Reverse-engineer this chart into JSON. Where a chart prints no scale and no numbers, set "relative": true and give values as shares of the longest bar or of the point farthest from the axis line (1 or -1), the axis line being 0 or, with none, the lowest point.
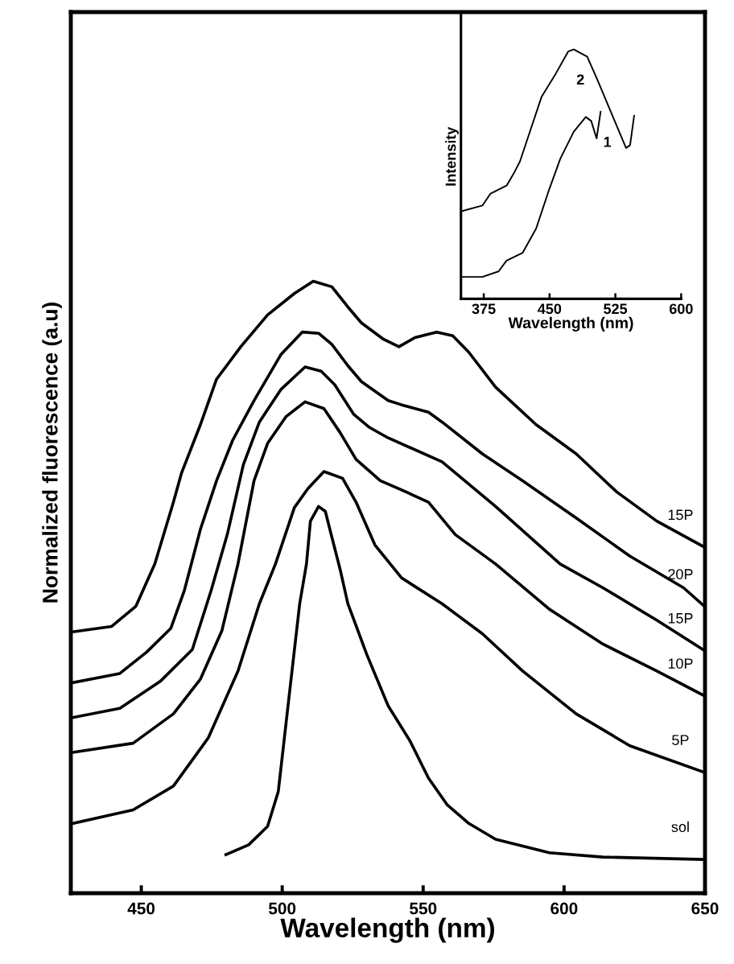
{
  "chart_data": [
    {
      "type": "line",
      "relative": true,
      "xlabel": "Wavelength (nm)",
      "ylabel": "Normalized fluorescence (a.u)",
      "xlim": [
        425,
        650
      ],
      "xticks": [
        450,
        500,
        550,
        600,
        650
      ],
      "tick_labels": "x",
      "grid": false,
      "legend": false,
      "marker": "none",
      "line_style": "solid",
      "series": [
        {
          "name": "15P",
          "color": "#000000",
          "x": [
            425.6,
            439.5,
            448.1,
            454.8,
            461.4,
            464.3,
            471,
            476.7,
            485.3,
            494.8,
            504.3,
            511,
            517.6,
            523.3,
            528.1,
            535.7,
            541.4,
            547.1,
            554.8,
            560.5,
            566.2,
            575.7,
            590,
            604.3,
            618.6,
            632.9,
            650
          ],
          "values": [
            0.427,
            0.436,
            0.469,
            0.538,
            0.639,
            0.687,
            0.766,
            0.84,
            0.893,
            0.945,
            0.98,
            1.0,
            0.991,
            0.958,
            0.932,
            0.906,
            0.893,
            0.908,
            0.917,
            0.911,
            0.884,
            0.827,
            0.766,
            0.718,
            0.656,
            0.608,
            0.565
          ]
        },
        {
          "name": "20P",
          "color": "#000000",
          "x": [
            425.7,
            442.4,
            451.9,
            460.5,
            465.3,
            471,
            476.7,
            482.4,
            490,
            499.5,
            507.1,
            512.9,
            517.6,
            523.3,
            528.1,
            537.6,
            542.4,
            551.9,
            556.7,
            571,
            585.3,
            604.3,
            623.3,
            642.4,
            650
          ],
          "values": [
            0.344,
            0.359,
            0.394,
            0.433,
            0.495,
            0.595,
            0.674,
            0.74,
            0.805,
            0.88,
            0.917,
            0.915,
            0.897,
            0.862,
            0.836,
            0.805,
            0.798,
            0.786,
            0.77,
            0.718,
            0.674,
            0.613,
            0.551,
            0.499,
            0.468
          ]
        },
        {
          "name": "15P",
          "color": "#000000",
          "x": [
            425.7,
            442.4,
            456.7,
            468.1,
            474.8,
            480.5,
            486.2,
            491.9,
            499.5,
            508.1,
            513.8,
            518.6,
            525.3,
            531,
            537.6,
            556.7,
            575.7,
            598.6,
            613.8,
            632.9,
            650
          ],
          "values": [
            0.287,
            0.302,
            0.346,
            0.398,
            0.495,
            0.586,
            0.7,
            0.77,
            0.823,
            0.86,
            0.853,
            0.831,
            0.783,
            0.761,
            0.744,
            0.705,
            0.632,
            0.538,
            0.499,
            0.446,
            0.396
          ]
        },
        {
          "name": "10P",
          "color": "#000000",
          "x": [
            425.7,
            447.1,
            461.4,
            471,
            478.6,
            484.3,
            490,
            494.8,
            501.4,
            508.1,
            514.8,
            520.5,
            526.2,
            534.8,
            541.4,
            551.9,
            561.4,
            575.7,
            594.8,
            613.8,
            632.9,
            650
          ],
          "values": [
            0.23,
            0.245,
            0.293,
            0.35,
            0.429,
            0.538,
            0.674,
            0.735,
            0.779,
            0.803,
            0.792,
            0.753,
            0.709,
            0.674,
            0.661,
            0.639,
            0.586,
            0.538,
            0.464,
            0.407,
            0.363,
            0.322
          ]
        },
        {
          "name": "5P",
          "color": "#000000",
          "x": [
            425.7,
            447.1,
            461.4,
            473.8,
            484.3,
            491.9,
            497.6,
            504.3,
            509.1,
            514.8,
            521.4,
            526.2,
            532.9,
            542.4,
            556.7,
            571,
            585.3,
            604.3,
            623.3,
            650
          ],
          "values": [
            0.114,
            0.136,
            0.175,
            0.254,
            0.363,
            0.473,
            0.538,
            0.63,
            0.661,
            0.689,
            0.678,
            0.639,
            0.569,
            0.515,
            0.473,
            0.424,
            0.363,
            0.293,
            0.241,
            0.197
          ]
        },
        {
          "name": "sol",
          "color": "#000000",
          "x": [
            480,
            488.1,
            494.8,
            498.6,
            502.4,
            506.2,
            508.6,
            510,
            512.9,
            515.3,
            517.1,
            520.5,
            523.3,
            530,
            537.6,
            545.3,
            551.9,
            558.6,
            566.2,
            575.7,
            594.8,
            613.8,
            650
          ],
          "values": [
            0.063,
            0.079,
            0.109,
            0.166,
            0.32,
            0.473,
            0.538,
            0.608,
            0.632,
            0.624,
            0.591,
            0.53,
            0.473,
            0.39,
            0.306,
            0.249,
            0.188,
            0.144,
            0.114,
            0.088,
            0.066,
            0.059,
            0.055
          ]
        }
      ]
    },
    {
      "type": "line",
      "relative": true,
      "xlabel": "Wavelength (nm)",
      "ylabel": "Intensity",
      "xlim": [
        349,
        600
      ],
      "xticks": [
        375,
        450,
        525,
        600
      ],
      "tick_labels": "x",
      "grid": false,
      "legend": false,
      "marker": "none",
      "line_style": "solid",
      "series": [
        {
          "name": "2",
          "color": "#000000",
          "x": [
            350.5,
            373.5,
            382.7,
            401,
            410,
            416.3,
            425.5,
            440.8,
            456,
            471.4,
            477.6,
            492.9,
            505,
            520.4,
            537.2,
            541.8,
            546.4
          ],
          "values": [
            0.352,
            0.374,
            0.422,
            0.454,
            0.508,
            0.551,
            0.648,
            0.809,
            0.896,
            0.992,
            1.0,
            0.971,
            0.874,
            0.745,
            0.605,
            0.616,
            0.734
          ]
        },
        {
          "name": "1",
          "color": "#000000",
          "x": [
            350.5,
            373.5,
            391.9,
            401,
            419.4,
            434.7,
            450,
            462.3,
            477.6,
            491.3,
            497.5,
            503.6,
            508.2
          ],
          "values": [
            0.088,
            0.088,
            0.11,
            0.153,
            0.185,
            0.282,
            0.443,
            0.562,
            0.67,
            0.729,
            0.713,
            0.643,
            0.75
          ]
        }
      ]
    }
  ]
}
